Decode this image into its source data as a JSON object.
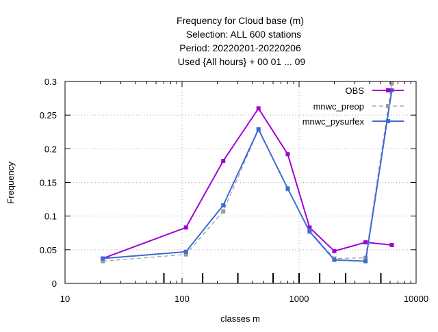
{
  "chart_data": {
    "type": "line",
    "title_lines": [
      "Frequency  for Cloud base (m)",
      "Selection: ALL    600 stations",
      "Period: 20220201-20220206",
      "Used {All hours} + 00 01 ... 09"
    ],
    "xlabel": "classes m",
    "ylabel": "Frequency",
    "x_scale": "log",
    "xlim": [
      10,
      10000
    ],
    "ylim": [
      0,
      0.3
    ],
    "x_ticks": [
      10,
      100,
      1000,
      10000
    ],
    "x_tick_labels": [
      "10",
      "100",
      "1000",
      "10000"
    ],
    "y_ticks": [
      0,
      0.05,
      0.1,
      0.15,
      0.2,
      0.25,
      0.3
    ],
    "y_tick_labels": [
      "0",
      "0.05",
      "0.1",
      "0.15",
      "0.2",
      "0.25",
      "0.3"
    ],
    "class_boundaries": [
      70,
      150,
      300,
      600,
      1000,
      1500,
      2500,
      5000
    ],
    "grid": true,
    "legend_position": "top-right",
    "series": [
      {
        "name": "OBS",
        "color": "#a000d6",
        "dashed": false,
        "x": [
          21,
          108,
          225,
          450,
          800,
          1230,
          2000,
          3700,
          6200
        ],
        "values": [
          0.037,
          0.083,
          0.182,
          0.26,
          0.192,
          0.083,
          0.048,
          0.061,
          0.057
        ]
      },
      {
        "name": "mnwc_preop",
        "color": "#9a9a9a",
        "dashed": true,
        "x": [
          21,
          108,
          225,
          450,
          800,
          1230,
          2000,
          3700,
          6200
        ],
        "values": [
          0.033,
          0.043,
          0.107,
          0.228,
          0.14,
          0.078,
          0.037,
          0.038,
          0.297
        ]
      },
      {
        "name": "mnwc_pysurfex",
        "color": "#3b6bd6",
        "dashed": false,
        "x": [
          21,
          108,
          225,
          450,
          800,
          1230,
          2000,
          3700,
          6200
        ],
        "values": [
          0.037,
          0.047,
          0.116,
          0.229,
          0.141,
          0.077,
          0.035,
          0.033,
          0.287
        ]
      }
    ]
  }
}
